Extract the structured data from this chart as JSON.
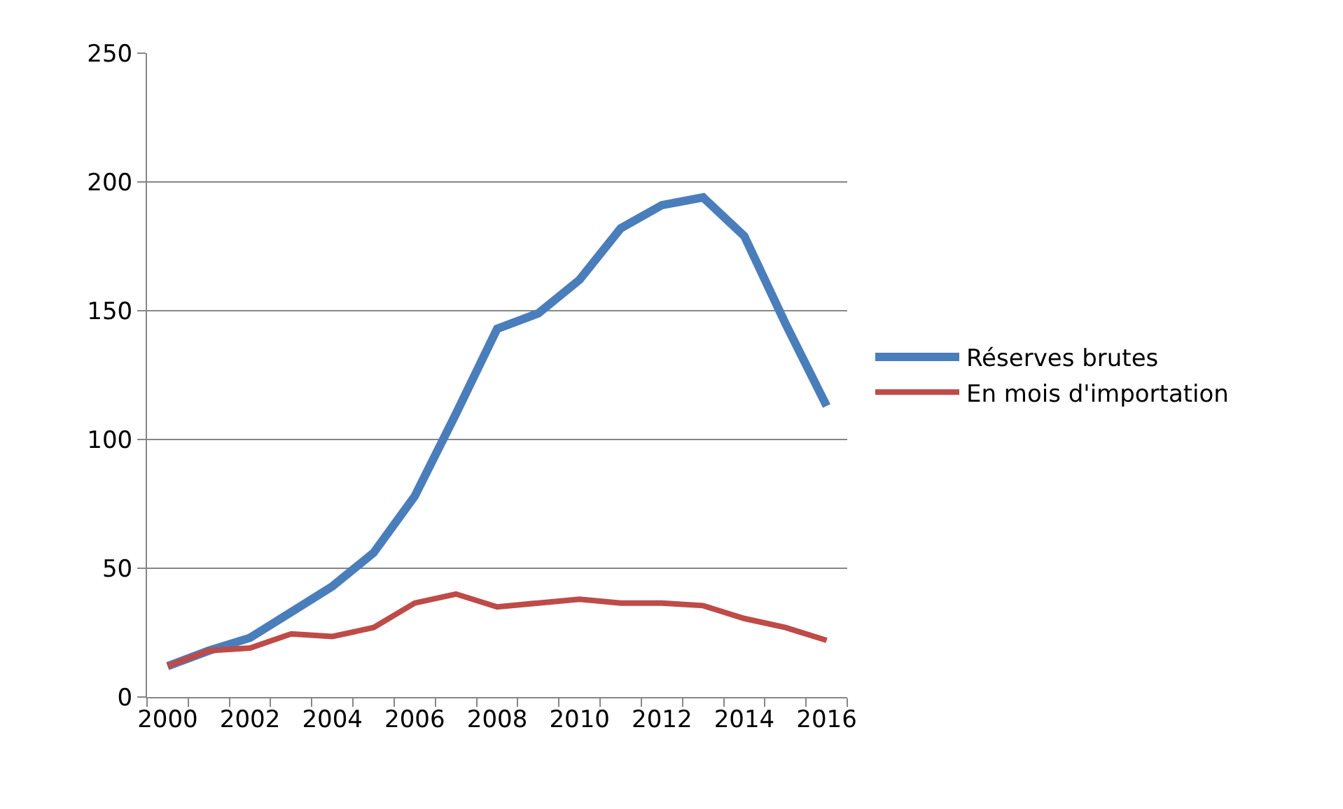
{
  "chart_data": {
    "type": "line",
    "x": [
      2000,
      2001,
      2002,
      2003,
      2004,
      2005,
      2006,
      2007,
      2008,
      2009,
      2010,
      2011,
      2012,
      2013,
      2014,
      2015,
      2016
    ],
    "series": [
      {
        "name": "Réserves brutes",
        "color": "#4a7ebb",
        "values": [
          12,
          18,
          23,
          33,
          43,
          56,
          78,
          110,
          143,
          149,
          162,
          182,
          191,
          194,
          179,
          145,
          113
        ]
      },
      {
        "name": "En mois d'importation",
        "color": "#be4b48",
        "values": [
          12,
          18,
          19,
          24.5,
          23.5,
          27,
          36.5,
          40,
          35,
          36.5,
          38,
          36.5,
          36.5,
          35.5,
          30.5,
          27,
          22
        ]
      }
    ],
    "xlim": [
      1999.5,
      2016.5
    ],
    "xticks": [
      2000,
      2002,
      2004,
      2006,
      2008,
      2010,
      2012,
      2014,
      2016
    ],
    "ylim": [
      0,
      250
    ],
    "yticks": [
      0,
      50,
      100,
      150,
      200,
      250
    ],
    "grid": "y",
    "legend": "right",
    "marker": "none",
    "line_style": "solid"
  }
}
